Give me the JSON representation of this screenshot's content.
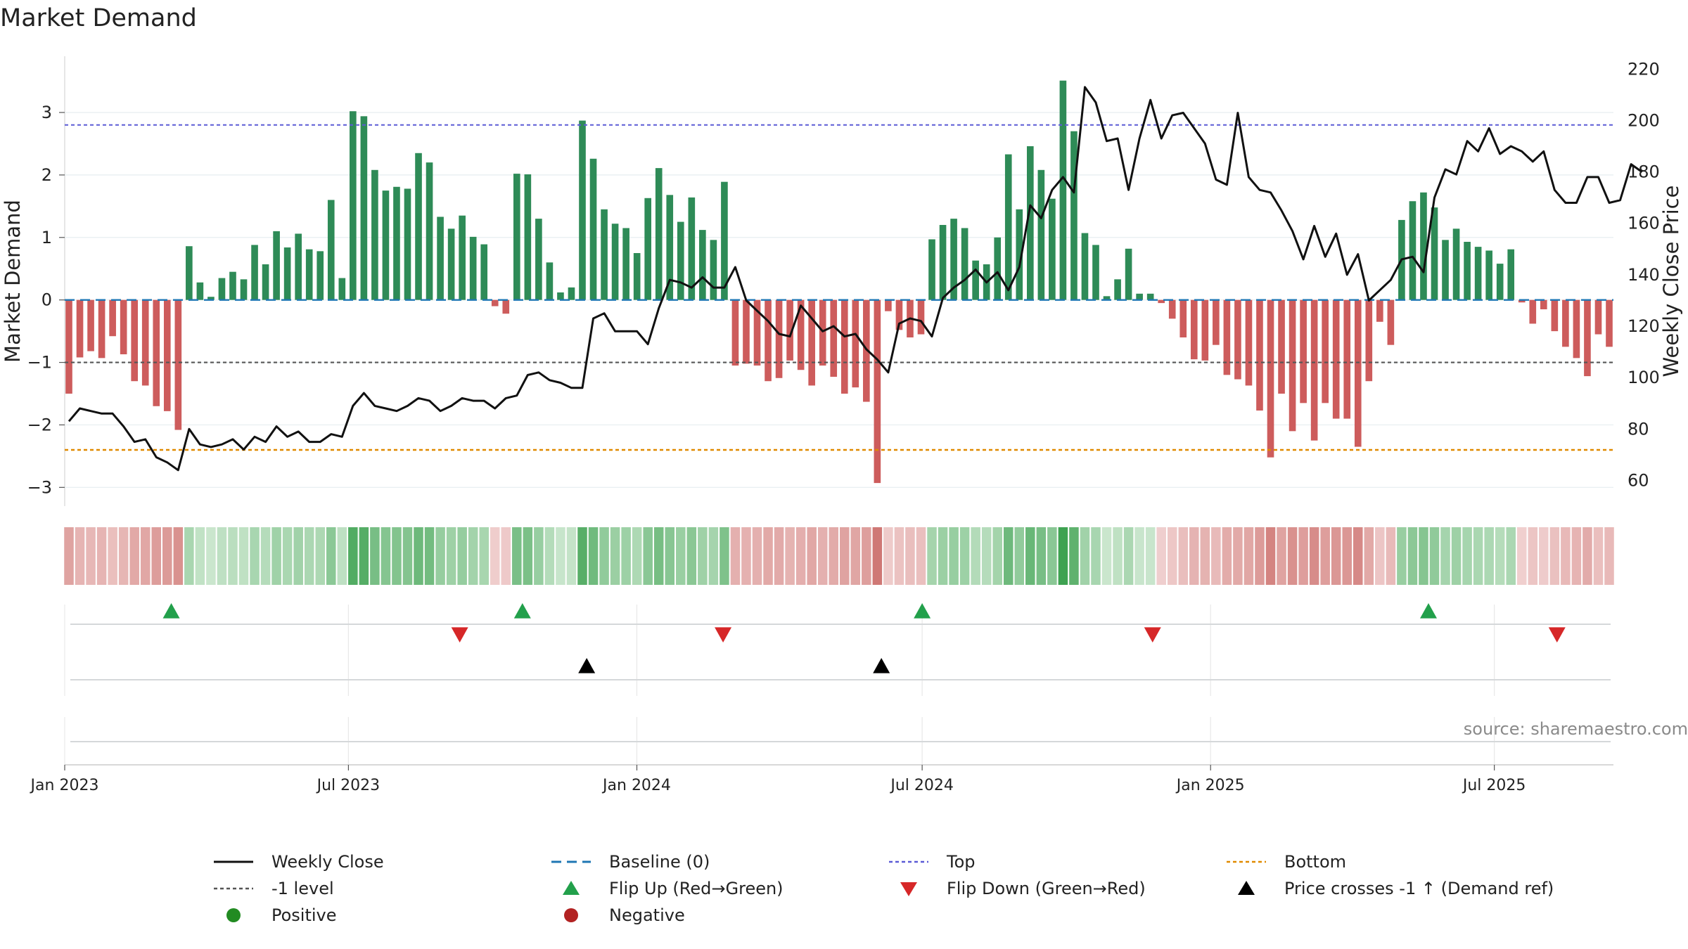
{
  "chart_data": {
    "type": "bar",
    "title": "Market Demand",
    "ylabel": "Market Demand",
    "y2label": "Weekly Close Price",
    "ylim": [
      -3.3,
      3.9
    ],
    "y2lim": [
      50,
      225
    ],
    "yticks": [
      -3,
      -2,
      -1,
      0,
      1,
      2,
      3
    ],
    "y2ticks": [
      60,
      80,
      100,
      120,
      140,
      160,
      180,
      200,
      220
    ],
    "date_start": "2023-01-01",
    "date_end": "2025-09-15",
    "xticks": [
      {
        "label": "Jan 2023",
        "date": "2023-01-01"
      },
      {
        "label": "Jul 2023",
        "date": "2023-07-01"
      },
      {
        "label": "Jan 2024",
        "date": "2024-01-01"
      },
      {
        "label": "Jul 2024",
        "date": "2024-07-01"
      },
      {
        "label": "Jan 2025",
        "date": "2025-01-01"
      },
      {
        "label": "Jul 2025",
        "date": "2025-07-01"
      }
    ],
    "reference_lines": {
      "top": 2.8,
      "bottom": -2.4,
      "minus_one": -1,
      "baseline": 0
    },
    "demand": [
      -1.5,
      -0.92,
      -0.82,
      -0.93,
      -0.58,
      -0.87,
      -1.3,
      -1.37,
      -1.7,
      -1.78,
      -2.08,
      0.86,
      0.28,
      0.05,
      0.35,
      0.45,
      0.33,
      0.88,
      0.57,
      1.1,
      0.84,
      1.06,
      0.81,
      0.78,
      1.6,
      0.35,
      3.02,
      2.94,
      2.08,
      1.75,
      1.81,
      1.78,
      2.35,
      2.2,
      1.33,
      1.14,
      1.35,
      1.01,
      0.89,
      -0.1,
      -0.22,
      2.02,
      2.01,
      1.3,
      0.6,
      0.12,
      0.2,
      2.87,
      2.26,
      1.45,
      1.22,
      1.15,
      0.75,
      1.63,
      2.11,
      1.68,
      1.25,
      1.64,
      1.12,
      0.96,
      1.89,
      -1.05,
      -1.02,
      -1.05,
      -1.3,
      -1.25,
      -0.97,
      -1.12,
      -1.37,
      -1.05,
      -1.23,
      -1.5,
      -1.4,
      -1.63,
      -2.93,
      -0.18,
      -0.48,
      -0.6,
      -0.55,
      0.97,
      1.2,
      1.3,
      1.15,
      0.63,
      0.57,
      1,
      2.33,
      1.45,
      2.46,
      2.08,
      1.62,
      3.51,
      2.7,
      1.07,
      0.88,
      0.06,
      0.33,
      0.82,
      0.1,
      0.1,
      -0.05,
      -0.3,
      -0.6,
      -0.95,
      -0.97,
      -0.72,
      -1.2,
      -1.27,
      -1.37,
      -1.77,
      -2.52,
      -1.5,
      -2.1,
      -1.65,
      -2.25,
      -1.65,
      -1.9,
      -1.9,
      -2.35,
      -1.3,
      -0.35,
      -0.72,
      1.28,
      1.58,
      1.72,
      1.48,
      0.96,
      1.14,
      0.93,
      0.85,
      0.79,
      0.58,
      0.81,
      -0.04,
      -0.38,
      -0.15,
      -0.5,
      -0.75,
      -0.93,
      -1.22,
      -0.55,
      -0.75
    ],
    "close": [
      83,
      88,
      87,
      86,
      86,
      81,
      75,
      76,
      69,
      67,
      64,
      80,
      74,
      73,
      74,
      76,
      72,
      77,
      75,
      81,
      77,
      79,
      75,
      75,
      78,
      77,
      89,
      94,
      89,
      88,
      87,
      89,
      92,
      91,
      87,
      89,
      92,
      91,
      91,
      88,
      92,
      93,
      101,
      102,
      99,
      98,
      96,
      96,
      123,
      125,
      118,
      118,
      118,
      113,
      127,
      138,
      137,
      135,
      139,
      135,
      135,
      143,
      130,
      126,
      122,
      117,
      116,
      128,
      123,
      118,
      120,
      116,
      117,
      111,
      107,
      102,
      121,
      123,
      122,
      116,
      131,
      135,
      138,
      142,
      137,
      141,
      134,
      143,
      167,
      162,
      173,
      178,
      172,
      213,
      207,
      192,
      193,
      173,
      193,
      208,
      193,
      202,
      203,
      197,
      191,
      177,
      175,
      203,
      178,
      173,
      172,
      165,
      157,
      146,
      159,
      147,
      156,
      140,
      148,
      130,
      134,
      138,
      146,
      147,
      141,
      170,
      181,
      179,
      192,
      188,
      197,
      187,
      190,
      188,
      184,
      188,
      173,
      168,
      168,
      178,
      178,
      168,
      169,
      183,
      180
    ],
    "signals": {
      "flip_up_dates": [
        "2023-03-10",
        "2023-10-20",
        "2024-07-01",
        "2025-05-20"
      ],
      "flip_down_dates": [
        "2023-09-10",
        "2024-02-25",
        "2024-11-25",
        "2025-08-10"
      ],
      "price_cross_dates": [
        "2023-11-30",
        "2024-06-05"
      ]
    },
    "legend": [
      {
        "key": "weekly_close",
        "label": "Weekly Close"
      },
      {
        "key": "baseline",
        "label": "Baseline (0)"
      },
      {
        "key": "top",
        "label": "Top"
      },
      {
        "key": "bottom",
        "label": "Bottom"
      },
      {
        "key": "minus_one",
        "label": "-1 level"
      },
      {
        "key": "flip_up",
        "label": "Flip Up (Red→Green)"
      },
      {
        "key": "flip_down",
        "label": "Flip Down (Green→Red)"
      },
      {
        "key": "price_cross",
        "label": "Price crosses -1 ↑ (Demand ref)"
      },
      {
        "key": "positive",
        "label": "Positive"
      },
      {
        "key": "negative",
        "label": "Negative"
      }
    ],
    "colors": {
      "positive": "#2e8b57",
      "negative": "#cd5c5c",
      "close_line": "#111111",
      "baseline": "#1f77b4",
      "top": "#5b5bd6",
      "bottom": "#e08a00",
      "minus_one": "#555555",
      "flip_up": "#22a04b",
      "flip_down": "#d62728",
      "price_cross": "#000000",
      "positive_dot": "#228b22",
      "negative_dot": "#b22222"
    }
  },
  "source": "source: sharemaestro.com"
}
